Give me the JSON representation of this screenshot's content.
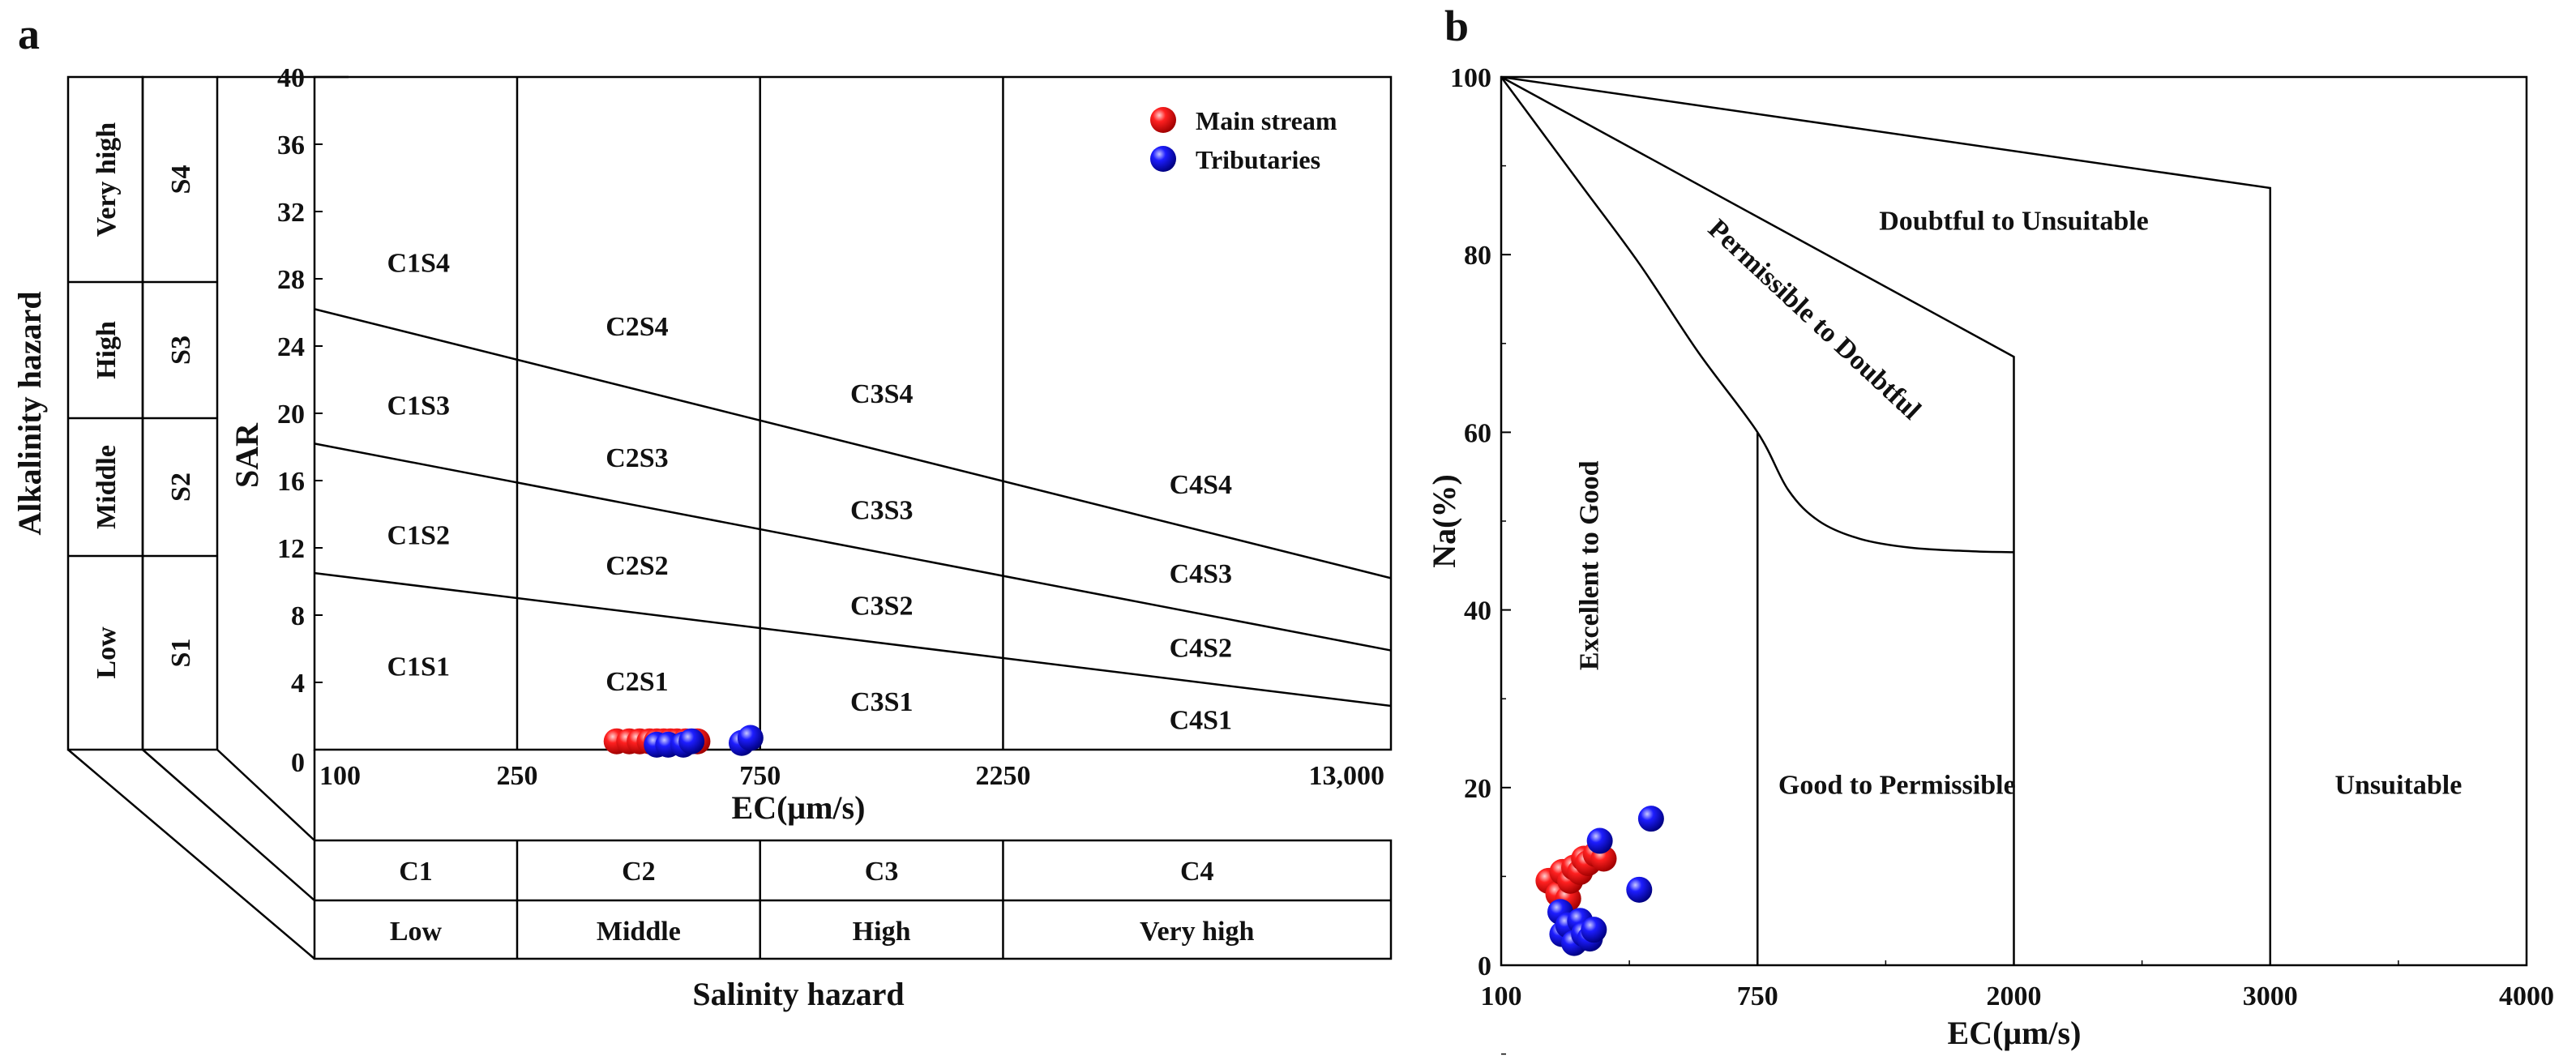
{
  "panels": {
    "a": {
      "letter": "a"
    },
    "b": {
      "letter": "b"
    }
  },
  "colors": {
    "main_stream": "#ff1010",
    "tributaries": "#1515e8"
  },
  "chart_data": [
    {
      "id": "a",
      "type": "scatter",
      "title": "",
      "xlabel": "EC(μm/s)",
      "ylabel": "SAR",
      "x_scale": "log",
      "xlim": [
        100,
        13000
      ],
      "ylim": [
        0,
        40
      ],
      "grid": false,
      "legend_position": "top-right",
      "x_ticks": [
        {
          "value": 100,
          "label": "100"
        },
        {
          "value": 250,
          "label": "250"
        },
        {
          "value": 750,
          "label": "750"
        },
        {
          "value": 2250,
          "label": "2250"
        },
        {
          "value": 13000,
          "label": "13,000"
        }
      ],
      "y_ticks": [
        {
          "value": 0,
          "label": "0"
        },
        {
          "value": 4,
          "label": "4"
        },
        {
          "value": 8,
          "label": "8"
        },
        {
          "value": 12,
          "label": "12"
        },
        {
          "value": 16,
          "label": "16"
        },
        {
          "value": 20,
          "label": "20"
        },
        {
          "value": 24,
          "label": "24"
        },
        {
          "value": 28,
          "label": "28"
        },
        {
          "value": 32,
          "label": "32"
        },
        {
          "value": 36,
          "label": "36"
        },
        {
          "value": 40,
          "label": "40"
        }
      ],
      "salinity_boundaries": [
        250,
        750,
        2250
      ],
      "sar_boundaries": [
        {
          "points": [
            [
              100,
              26.2
            ],
            [
              13000,
              10.2
            ]
          ]
        },
        {
          "points": [
            [
              100,
              18.2
            ],
            [
              13000,
              5.9
            ]
          ]
        },
        {
          "points": [
            [
              100,
              10.5
            ],
            [
              13000,
              2.6
            ]
          ]
        }
      ],
      "regions": [
        {
          "label": "C1S4",
          "x": 160,
          "y": 29.0
        },
        {
          "label": "C1S3",
          "x": 160,
          "y": 20.5
        },
        {
          "label": "C1S2",
          "x": 160,
          "y": 12.8
        },
        {
          "label": "C1S1",
          "x": 160,
          "y": 5.0
        },
        {
          "label": "C2S4",
          "x": 430,
          "y": 25.2
        },
        {
          "label": "C2S3",
          "x": 430,
          "y": 17.4
        },
        {
          "label": "C2S2",
          "x": 430,
          "y": 11.0
        },
        {
          "label": "C2S1",
          "x": 430,
          "y": 4.1
        },
        {
          "label": "C3S4",
          "x": 1300,
          "y": 21.2
        },
        {
          "label": "C3S3",
          "x": 1300,
          "y": 14.3
        },
        {
          "label": "C3S2",
          "x": 1300,
          "y": 8.6
        },
        {
          "label": "C3S1",
          "x": 1300,
          "y": 2.9
        },
        {
          "label": "C4S4",
          "x": 5500,
          "y": 15.8
        },
        {
          "label": "C4S3",
          "x": 5500,
          "y": 10.5
        },
        {
          "label": "C4S2",
          "x": 5500,
          "y": 6.1
        },
        {
          "label": "C4S1",
          "x": 5500,
          "y": 1.8
        }
      ],
      "alkalinity_hazard": {
        "title": "Alkalinity hazard",
        "classes": [
          {
            "level": "Very high",
            "code": "S4"
          },
          {
            "level": "High",
            "code": "S3"
          },
          {
            "level": "Middle",
            "code": "S2"
          },
          {
            "level": "Low",
            "code": "S1"
          }
        ]
      },
      "salinity_hazard": {
        "title": "Salinity hazard",
        "classes": [
          {
            "code": "C1",
            "level": "Low"
          },
          {
            "code": "C2",
            "level": "Middle"
          },
          {
            "code": "C3",
            "level": "High"
          },
          {
            "code": "C4",
            "level": "Very high"
          }
        ]
      },
      "series": [
        {
          "name": "Main stream",
          "color": "#ff1010",
          "points": [
            [
              392,
              0.4
            ],
            [
              415,
              0.4
            ],
            [
              435,
              0.4
            ],
            [
              455,
              0.4
            ],
            [
              470,
              0.4
            ],
            [
              485,
              0.4
            ],
            [
              500,
              0.4
            ],
            [
              515,
              0.4
            ],
            [
              535,
              0.4
            ],
            [
              565,
              0.4
            ]
          ]
        },
        {
          "name": "Tributaries",
          "color": "#1515e8",
          "points": [
            [
              470,
              0.2
            ],
            [
              495,
              0.2
            ],
            [
              530,
              0.2
            ],
            [
              550,
              0.4
            ],
            [
              690,
              0.3
            ],
            [
              718,
              0.6
            ]
          ]
        }
      ]
    },
    {
      "id": "b",
      "type": "scatter",
      "title": "",
      "xlabel": "EC(μm/s)",
      "ylabel": "Na(%)",
      "xlim": [
        100,
        4000
      ],
      "ylim": [
        0,
        100
      ],
      "grid": false,
      "x_ticks": [
        {
          "value": 100,
          "label": "100"
        },
        {
          "value": 750,
          "label": "750"
        },
        {
          "value": 2000,
          "label": "2000"
        },
        {
          "value": 3000,
          "label": "3000"
        },
        {
          "value": 4000,
          "label": "4000"
        }
      ],
      "y_ticks": [
        {
          "value": 0,
          "label": "0"
        },
        {
          "value": 20,
          "label": "20"
        },
        {
          "value": 40,
          "label": "40"
        },
        {
          "value": 60,
          "label": "60"
        },
        {
          "value": 80,
          "label": "80"
        },
        {
          "value": 100,
          "label": "100"
        }
      ],
      "boundaries": [
        {
          "name": "unsuitable",
          "points": [
            [
              100,
              100
            ],
            [
              3000,
              87.5
            ],
            [
              3000,
              0
            ]
          ]
        },
        {
          "name": "doubtful",
          "points": [
            [
              100,
              100
            ],
            [
              2000,
              68.5
            ],
            [
              2000,
              0
            ]
          ]
        },
        {
          "name": "permissible",
          "points": [
            [
              100,
              100
            ],
            [
              300,
              88
            ],
            [
              450,
              79
            ],
            [
              600,
              69
            ],
            [
              750,
              60
            ],
            [
              900,
              53.5
            ],
            [
              1050,
              50
            ],
            [
              1250,
              48
            ],
            [
              1500,
              47
            ],
            [
              1800,
              46.6
            ],
            [
              2000,
              46.5
            ]
          ]
        },
        {
          "name": "good",
          "points": [
            [
              750,
              60
            ],
            [
              750,
              0
            ]
          ]
        }
      ],
      "regions": [
        {
          "label": "Doubtful to Unsuitable",
          "x": 2000,
          "y": 83.5,
          "rotation": 0
        },
        {
          "label": "Permissible to Doubtful",
          "x": 1020,
          "y": 72.5,
          "rotation": 43
        },
        {
          "label": "Excellent to Good",
          "x": 330,
          "y": 45,
          "rotation": -90
        },
        {
          "label": "Good to Permissible",
          "x": 1430,
          "y": 20,
          "rotation": 0
        },
        {
          "label": "Unsuitable",
          "x": 3500,
          "y": 20,
          "rotation": 0
        }
      ],
      "series": [
        {
          "name": "Main stream",
          "color": "#ff1010",
          "points": [
            [
              220,
              9.5
            ],
            [
              245,
              8
            ],
            [
              255,
              10.5
            ],
            [
              270,
              7.5
            ],
            [
              275,
              9.5
            ],
            [
              285,
              11
            ],
            [
              300,
              10.5
            ],
            [
              310,
              12
            ],
            [
              320,
              11.5
            ],
            [
              340,
              12.5
            ],
            [
              360,
              12
            ]
          ]
        },
        {
          "name": "Tributaries",
          "color": "#1515e8",
          "points": [
            [
              250,
              6
            ],
            [
              255,
              3.5
            ],
            [
              270,
              4.5
            ],
            [
              285,
              2.5
            ],
            [
              300,
              5
            ],
            [
              310,
              3.5
            ],
            [
              325,
              3
            ],
            [
              335,
              4
            ],
            [
              350,
              14
            ],
            [
              450,
              8.5
            ],
            [
              480,
              16.5
            ]
          ]
        }
      ]
    }
  ]
}
